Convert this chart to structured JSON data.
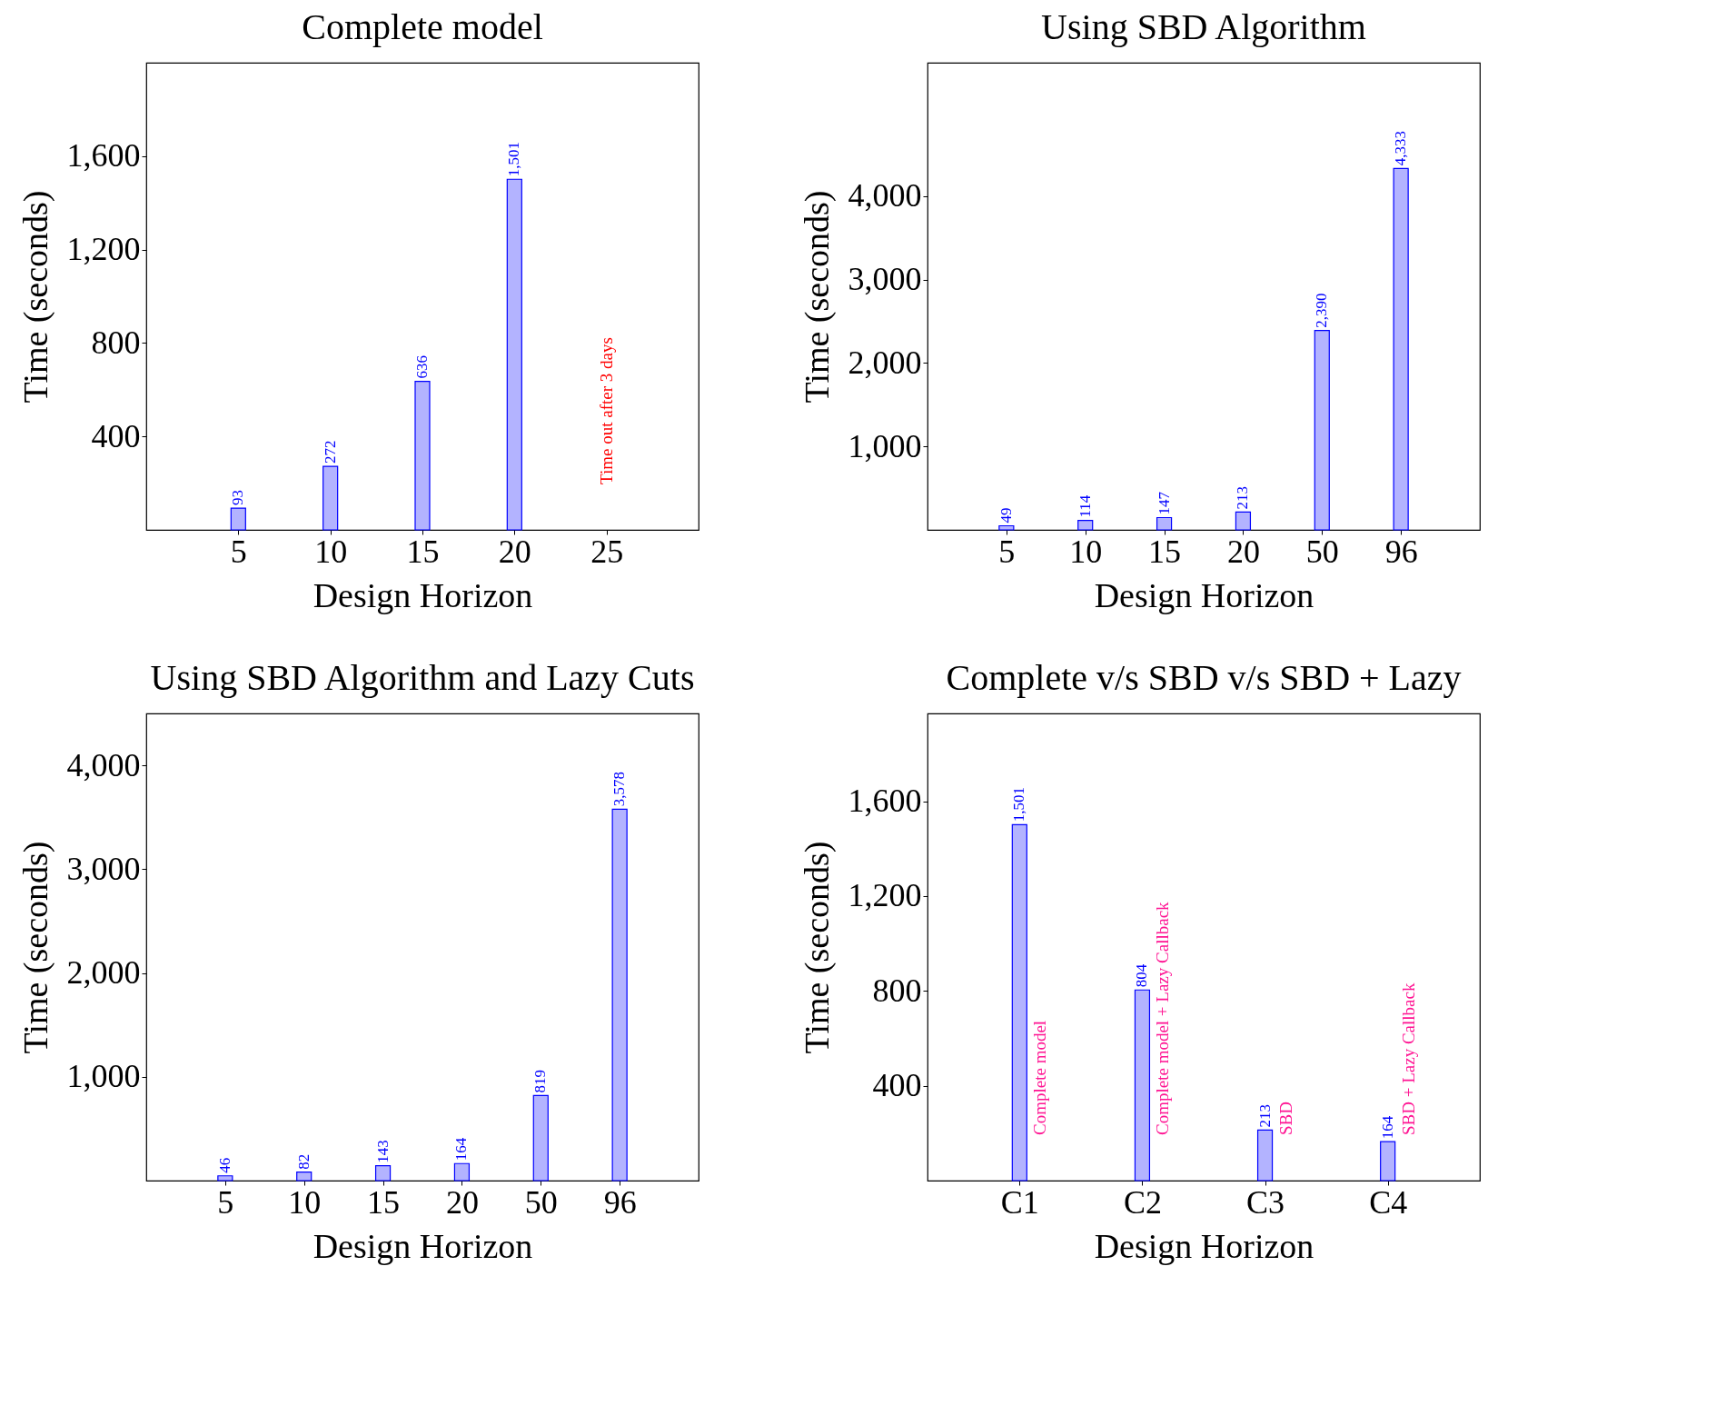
{
  "chart_data": [
    {
      "type": "bar",
      "title": "Complete model",
      "xlabel": "Design Horizon",
      "ylabel": "Time (seconds)",
      "categories": [
        "5",
        "10",
        "15",
        "20",
        "25"
      ],
      "values": [
        93,
        272,
        636,
        1501,
        null
      ],
      "value_labels": [
        "93",
        "272",
        "636",
        "1,501",
        null
      ],
      "color": "#b3b3ff",
      "ylim": [
        0,
        2000
      ],
      "yticks": [
        {
          "value": 400,
          "label": "400"
        },
        {
          "value": 800,
          "label": "800"
        },
        {
          "value": 1200,
          "label": "1,200"
        },
        {
          "value": 1600,
          "label": "1,600"
        }
      ],
      "grid": false,
      "annotations": [
        "Time out after 3 days"
      ]
    },
    {
      "type": "bar",
      "title": "Using SBD Algorithm",
      "xlabel": "Design Horizon",
      "ylabel": "Time (seconds)",
      "categories": [
        "5",
        "10",
        "15",
        "20",
        "50",
        "96"
      ],
      "values": [
        49,
        114,
        147,
        213,
        2390,
        4333
      ],
      "value_labels": [
        "49",
        "114",
        "147",
        "213",
        "2,390",
        "4,333"
      ],
      "color": "#b3b3ff",
      "ylim": [
        0,
        5600
      ],
      "yticks": [
        {
          "value": 1000,
          "label": "1,000"
        },
        {
          "value": 2000,
          "label": "2,000"
        },
        {
          "value": 3000,
          "label": "3,000"
        },
        {
          "value": 4000,
          "label": "4,000"
        }
      ],
      "grid": false
    },
    {
      "type": "bar",
      "title": "Using SBD Algorithm and Lazy Cuts",
      "xlabel": "Design Horizon",
      "ylabel": "Time (seconds)",
      "categories": [
        "5",
        "10",
        "15",
        "20",
        "50",
        "96"
      ],
      "values": [
        46,
        82,
        143,
        164,
        819,
        3578
      ],
      "value_labels": [
        "46",
        "82",
        "143",
        "164",
        "819",
        "3,578"
      ],
      "color": "#b3b3ff",
      "ylim": [
        0,
        4500
      ],
      "yticks": [
        {
          "value": 1000,
          "label": "1,000"
        },
        {
          "value": 2000,
          "label": "2,000"
        },
        {
          "value": 3000,
          "label": "3,000"
        },
        {
          "value": 4000,
          "label": "4,000"
        }
      ],
      "grid": false
    },
    {
      "type": "bar",
      "title": "Complete v/s SBD v/s SBD + Lazy",
      "xlabel": "Design Horizon",
      "ylabel": "Time (seconds)",
      "categories": [
        "C1",
        "C2",
        "C3",
        "C4"
      ],
      "values": [
        1501,
        804,
        213,
        164
      ],
      "value_labels": [
        "1,501",
        "804",
        "213",
        "164"
      ],
      "color": "#b3b3ff",
      "ylim": [
        0,
        1970
      ],
      "yticks": [
        {
          "value": 400,
          "label": "400"
        },
        {
          "value": 800,
          "label": "800"
        },
        {
          "value": 1200,
          "label": "1,200"
        },
        {
          "value": 1600,
          "label": "1,600"
        }
      ],
      "grid": false,
      "annotations": [
        "Complete model",
        "Complete model + Lazy Callback",
        "SBD",
        "SBD + Lazy Callback"
      ]
    }
  ]
}
